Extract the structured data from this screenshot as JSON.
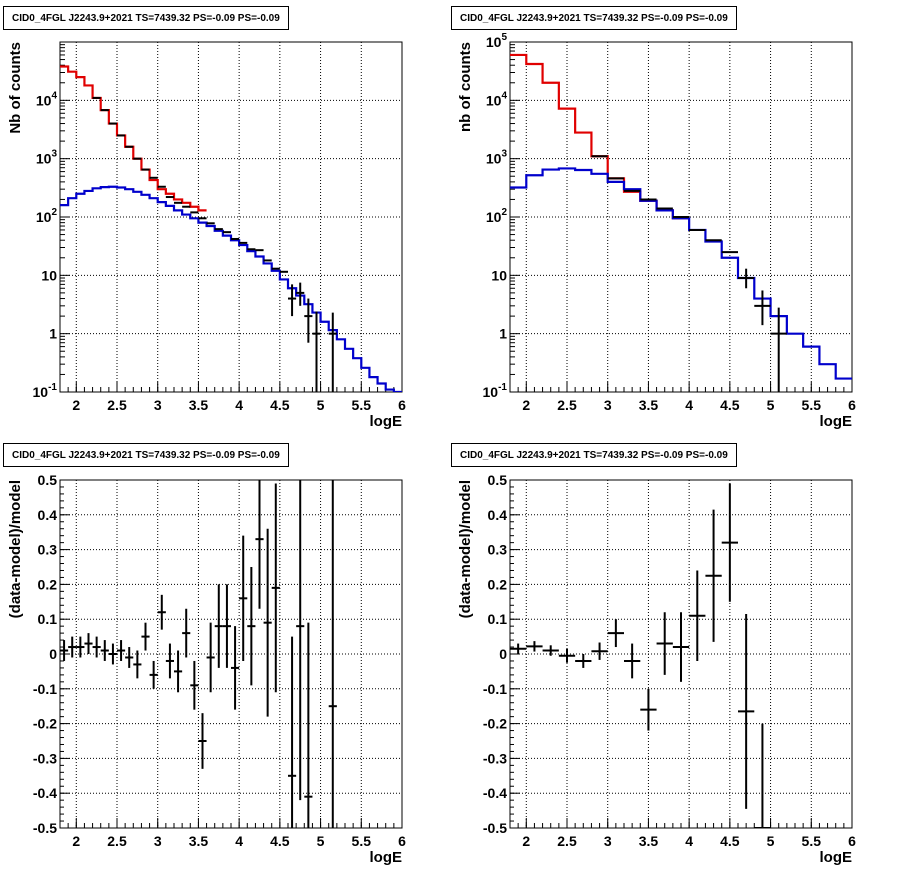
{
  "colors": {
    "data": "#000000",
    "total_model": "#e00000",
    "component_model": "#0000cc",
    "grid": "#000000"
  },
  "chart_data": [
    {
      "type": "line",
      "title": "CID0_4FGL J2243.9+2021 TS=7439.32 PS=-0.09 PS=-0.09",
      "xlabel": "logE",
      "ylabel": "Nb of counts",
      "xlim": [
        1.8,
        6
      ],
      "ylim": [
        0.1,
        100000
      ],
      "log_y": true,
      "grid": true,
      "x_ticks": [
        "2",
        "2.5",
        "3",
        "3.5",
        "4",
        "4.5",
        "5",
        "5.5",
        "6"
      ],
      "y_ticks": [
        "10^{-1}",
        "1",
        "10",
        "10^{2}",
        "10^{3}",
        "10^{4}"
      ],
      "bin_width": 0.1,
      "series": [
        {
          "role": "total_model",
          "x": [
            1.85,
            1.95,
            2.05,
            2.15,
            2.25,
            2.35,
            2.45,
            2.55,
            2.65,
            2.75,
            2.85,
            2.95,
            3.05,
            3.15,
            3.25,
            3.35,
            3.45,
            3.55
          ],
          "y": [
            38000,
            31000,
            25000,
            18000,
            11000,
            6800,
            4000,
            2500,
            1600,
            1000,
            650,
            430,
            300,
            250,
            200,
            175,
            150,
            130
          ]
        },
        {
          "role": "component_model",
          "x": [
            1.85,
            1.95,
            2.05,
            2.15,
            2.25,
            2.35,
            2.45,
            2.55,
            2.65,
            2.75,
            2.85,
            2.95,
            3.05,
            3.15,
            3.25,
            3.35,
            3.45,
            3.55,
            3.65,
            3.75,
            3.85,
            3.95,
            4.05,
            4.15,
            4.25,
            4.35,
            4.45,
            4.55,
            4.65,
            4.75,
            4.85,
            4.95,
            5.05,
            5.15,
            5.25,
            5.35,
            5.45,
            5.55,
            5.65,
            5.75,
            5.85,
            5.95
          ],
          "y": [
            160,
            210,
            250,
            280,
            310,
            325,
            330,
            320,
            300,
            270,
            240,
            210,
            180,
            155,
            130,
            110,
            95,
            80,
            70,
            58,
            48,
            40,
            33,
            26,
            21,
            16,
            12,
            8.5,
            6,
            4.5,
            3.2,
            2.3,
            1.6,
            1.15,
            0.8,
            0.55,
            0.38,
            0.26,
            0.18,
            0.14,
            0.11,
            0.1
          ]
        },
        {
          "role": "data",
          "x": [
            2.25,
            2.35,
            2.45,
            2.55,
            2.65,
            2.75,
            2.85,
            2.95,
            3.05,
            3.15,
            3.25,
            3.35,
            3.45,
            3.55,
            3.65,
            3.75,
            3.85,
            3.95,
            4.05,
            4.15,
            4.25,
            4.35,
            4.45,
            4.55,
            4.65,
            4.75,
            4.85,
            4.95,
            5.05,
            5.15
          ],
          "y": [
            11000,
            6800,
            4000,
            2500,
            1600,
            1000,
            650,
            470,
            330,
            220,
            175,
            150,
            120,
            95,
            78,
            62,
            55,
            42,
            36,
            28,
            27,
            18,
            13,
            11.5,
            4,
            5,
            2,
            1,
            null,
            1
          ],
          "yerr_low": [
            0,
            0,
            0,
            0,
            0,
            0,
            0,
            0,
            0,
            0,
            0,
            0,
            0,
            0,
            0,
            0,
            0,
            0,
            0,
            0,
            0,
            0,
            0,
            0,
            2,
            2,
            1.3,
            0.9,
            0,
            0.9
          ],
          "yerr_high": [
            0,
            0,
            0,
            0,
            0,
            0,
            0,
            0,
            0,
            0,
            0,
            0,
            0,
            0,
            0,
            0,
            0,
            0,
            0,
            0,
            0,
            0,
            0,
            0,
            3,
            2.5,
            2,
            1.4,
            0,
            1.3
          ]
        }
      ]
    },
    {
      "type": "line",
      "title": "CID0_4FGL J2243.9+2021 TS=7439.32 PS=-0.09 PS=-0.09",
      "xlabel": "logE",
      "ylabel": "nb of counts",
      "xlim": [
        1.8,
        6
      ],
      "ylim": [
        0.1,
        100000
      ],
      "log_y": true,
      "grid": true,
      "x_ticks": [
        "2",
        "2.5",
        "3",
        "3.5",
        "4",
        "4.5",
        "5",
        "5.5",
        "6"
      ],
      "y_ticks": [
        "10^{-1}",
        "1",
        "10",
        "10^{2}",
        "10^{3}",
        "10^{4}",
        "10^{5}"
      ],
      "bin_width": 0.2,
      "series": [
        {
          "role": "total_model",
          "x": [
            1.9,
            2.1,
            2.3,
            2.5,
            2.7,
            2.9,
            3.1,
            3.3,
            3.5,
            3.7,
            3.9
          ],
          "y": [
            60000,
            42000,
            20000,
            7200,
            2800,
            1100,
            460,
            270,
            190,
            130,
            95
          ]
        },
        {
          "role": "component_model",
          "x": [
            1.9,
            2.1,
            2.3,
            2.5,
            2.7,
            2.9,
            3.1,
            3.3,
            3.5,
            3.7,
            3.9,
            4.1,
            4.3,
            4.5,
            4.7,
            4.9,
            5.1,
            5.3,
            5.5,
            5.7,
            5.9
          ],
          "y": [
            320,
            520,
            650,
            680,
            640,
            550,
            400,
            300,
            190,
            130,
            95,
            60,
            38,
            20,
            9,
            4,
            2,
            1,
            0.6,
            0.3,
            0.17
          ]
        },
        {
          "role": "data",
          "x": [
            2.9,
            3.1,
            3.3,
            3.5,
            3.7,
            3.9,
            4.1,
            4.3,
            4.5,
            4.7,
            4.9,
            5.1
          ],
          "y": [
            1100,
            460,
            280,
            200,
            140,
            100,
            60,
            40,
            25,
            9,
            3,
            1
          ],
          "yerr_low": [
            0,
            0,
            0,
            0,
            0,
            0,
            0,
            0,
            0,
            3,
            1.6,
            0.9
          ],
          "yerr_high": [
            0,
            0,
            0,
            0,
            0,
            0,
            0,
            0,
            0,
            4,
            2.5,
            1.8
          ]
        }
      ]
    },
    {
      "type": "scatter",
      "title": "CID0_4FGL J2243.9+2021 TS=7439.32 PS=-0.09 PS=-0.09",
      "xlabel": "logE",
      "ylabel": "(data-model)/model",
      "xlim": [
        1.8,
        6
      ],
      "ylim": [
        -0.5,
        0.5
      ],
      "grid": true,
      "x_ticks": [
        "2",
        "2.5",
        "3",
        "3.5",
        "4",
        "4.5",
        "5",
        "5.5",
        "6"
      ],
      "y_ticks": [
        "-0.5",
        "-0.4",
        "-0.3",
        "-0.2",
        "-0.1",
        "0",
        "0.1",
        "0.2",
        "0.3",
        "0.4",
        "0.5"
      ],
      "bin_width": 0.1,
      "series": [
        {
          "role": "data",
          "x": [
            1.85,
            1.95,
            2.05,
            2.15,
            2.25,
            2.35,
            2.45,
            2.55,
            2.65,
            2.75,
            2.85,
            2.95,
            3.05,
            3.15,
            3.25,
            3.35,
            3.45,
            3.55,
            3.65,
            3.75,
            3.85,
            3.95,
            4.05,
            4.15,
            4.25,
            4.35,
            4.45,
            4.55,
            4.65,
            4.75,
            4.85,
            4.95,
            5.05,
            5.15
          ],
          "y": [
            0.01,
            0.02,
            0.02,
            0.03,
            0.02,
            0.01,
            0,
            0.01,
            -0.01,
            -0.03,
            0.05,
            -0.06,
            0.12,
            -0.02,
            -0.05,
            0.06,
            -0.09,
            -0.25,
            -0.01,
            0.08,
            0.08,
            -0.04,
            0.16,
            0.08,
            0.33,
            0.09,
            0.19,
            null,
            -0.35,
            0.08,
            -0.41,
            null,
            null,
            -0.15
          ],
          "yerr": [
            0.03,
            0.03,
            0.03,
            0.03,
            0.03,
            0.03,
            0.03,
            0.03,
            0.03,
            0.04,
            0.04,
            0.04,
            0.05,
            0.05,
            0.06,
            0.07,
            0.07,
            0.08,
            0.1,
            0.12,
            0.12,
            0.12,
            0.18,
            0.17,
            0.2,
            0.27,
            0.3,
            0,
            0.4,
            0.5,
            0.5,
            0,
            0,
            0.7
          ]
        }
      ]
    },
    {
      "type": "scatter",
      "title": "CID0_4FGL J2243.9+2021 TS=7439.32 PS=-0.09 PS=-0.09",
      "xlabel": "logE",
      "ylabel": "(data-model)/model",
      "xlim": [
        1.8,
        6
      ],
      "ylim": [
        -0.5,
        0.5
      ],
      "grid": true,
      "x_ticks": [
        "2",
        "2.5",
        "3",
        "3.5",
        "4",
        "4.5",
        "5",
        "5.5",
        "6"
      ],
      "y_ticks": [
        "-0.5",
        "-0.4",
        "-0.3",
        "-0.2",
        "-0.1",
        "0",
        "0.1",
        "0.2",
        "0.3",
        "0.4",
        "0.5"
      ],
      "bin_width": 0.2,
      "series": [
        {
          "role": "data",
          "x": [
            1.9,
            2.1,
            2.3,
            2.5,
            2.7,
            2.9,
            3.1,
            3.3,
            3.5,
            3.7,
            3.9,
            4.1,
            4.3,
            4.5,
            4.7,
            4.9
          ],
          "y": [
            0.015,
            0.022,
            0.01,
            -0.005,
            -0.02,
            0.008,
            0.06,
            -0.02,
            -0.16,
            0.03,
            0.02,
            0.11,
            0.225,
            0.32,
            -0.165,
            -0.5
          ],
          "yerr": [
            0.015,
            0.015,
            0.015,
            0.02,
            0.02,
            0.025,
            0.04,
            0.05,
            0.06,
            0.09,
            0.1,
            0.13,
            0.19,
            0.17,
            0.28,
            0.3
          ]
        }
      ]
    }
  ]
}
